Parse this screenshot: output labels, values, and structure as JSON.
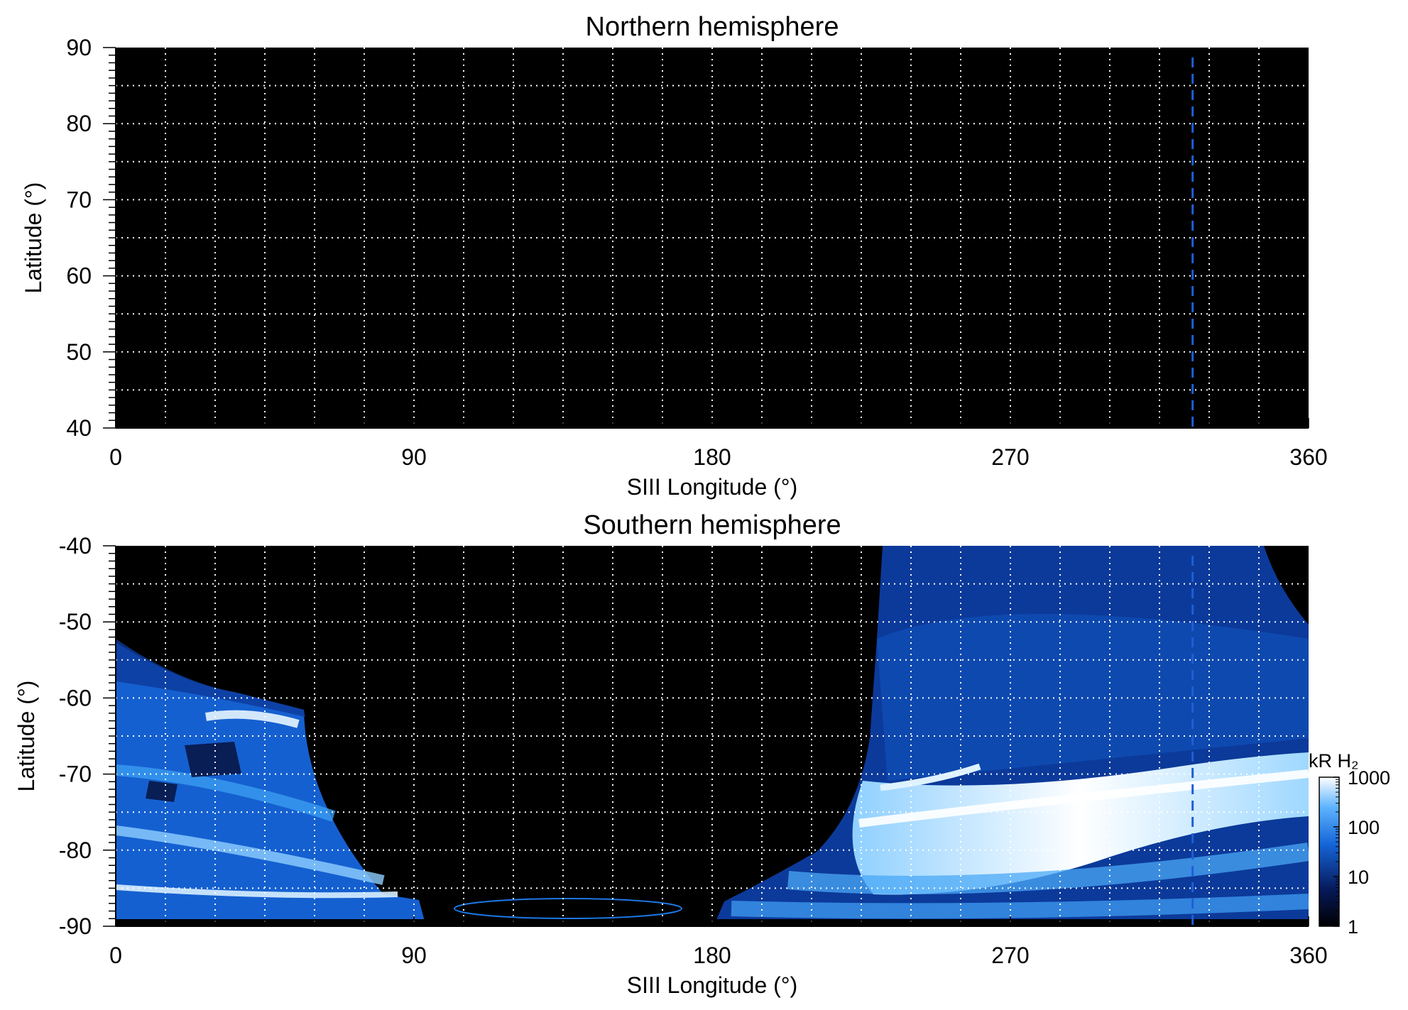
{
  "chart_data": [
    {
      "type": "heatmap",
      "title": "Northern hemisphere",
      "xlabel": "SIII Longitude (°)",
      "ylabel": "Latitude (°)",
      "xlim": [
        0,
        360
      ],
      "ylim": [
        40,
        90
      ],
      "x_ticks": [
        "0",
        "90",
        "180",
        "270",
        "360"
      ],
      "y_ticks": [
        "90",
        "80",
        "70",
        "60",
        "50",
        "40"
      ],
      "grid": true,
      "marker_longitude": 325,
      "emission": "none"
    },
    {
      "type": "heatmap",
      "title": "Southern hemisphere",
      "xlabel": "SIII Longitude (°)",
      "ylabel": "Latitude (°)",
      "xlim": [
        0,
        360
      ],
      "ylim": [
        -90,
        -40
      ],
      "x_ticks": [
        "0",
        "90",
        "180",
        "270",
        "360"
      ],
      "y_ticks": [
        "-40",
        "-50",
        "-60",
        "-70",
        "-80",
        "-90"
      ],
      "grid": true,
      "marker_longitude": 325,
      "colorbar": {
        "label": "kR H₂",
        "scale": "log",
        "range": [
          1,
          1000
        ],
        "ticks": [
          "1000",
          "100",
          "10",
          "1"
        ]
      }
    }
  ],
  "colors": {
    "background": "#000000",
    "emission_low": "#0a2a7a",
    "emission_mid": "#1e78e6",
    "emission_high": "#ffffff",
    "marker": "#1e5fd8",
    "grid": "#ffffff"
  }
}
